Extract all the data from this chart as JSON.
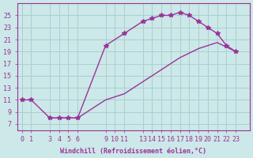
{
  "xlabel": "Windchill (Refroidissement éolien,°C)",
  "bg_color": "#cce8e8",
  "grid_color": "#aacfcf",
  "line_color": "#993399",
  "xticks": [
    0,
    1,
    3,
    4,
    5,
    6,
    9,
    10,
    11,
    13,
    14,
    15,
    16,
    17,
    18,
    19,
    20,
    21,
    22,
    23
  ],
  "yticks": [
    7,
    9,
    11,
    13,
    15,
    17,
    19,
    21,
    23,
    25
  ],
  "xlim": [
    -0.5,
    24.5
  ],
  "ylim": [
    6,
    27
  ],
  "line1_x": [
    0,
    1,
    3,
    4,
    5,
    6,
    9,
    11,
    13,
    14,
    15,
    16,
    17,
    18,
    19,
    20,
    21,
    22,
    23
  ],
  "line1_y": [
    11,
    11,
    8,
    8,
    8,
    8,
    20,
    22,
    24,
    24.5,
    25,
    25,
    25.5,
    25,
    24,
    23,
    22,
    20,
    19
  ],
  "line2_x": [
    3,
    4,
    5,
    6,
    9,
    11,
    13,
    15,
    17,
    19,
    21,
    23
  ],
  "line2_y": [
    8,
    8,
    8,
    8,
    11,
    12,
    14,
    16,
    18,
    19.5,
    20.5,
    19
  ]
}
